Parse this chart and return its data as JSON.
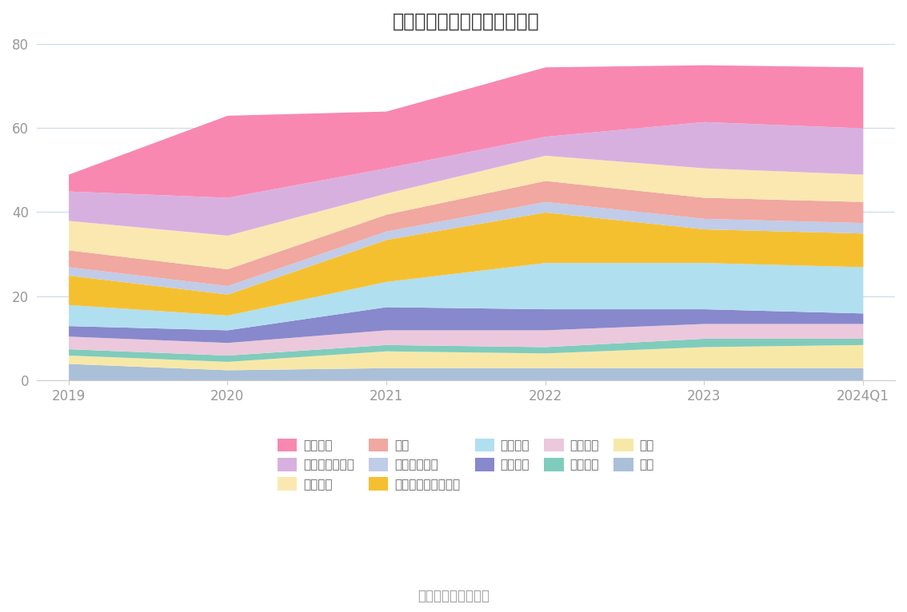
{
  "title": "历年主要资产堆积图（亿元）",
  "source": "数据来源：恒生聚源",
  "x_labels": [
    "2019",
    "2020",
    "2021",
    "2022",
    "2023",
    "2024Q1"
  ],
  "x_values": [
    0,
    1,
    2,
    3,
    4,
    5
  ],
  "ylim": [
    0,
    80
  ],
  "yticks": [
    0,
    20,
    40,
    60,
    80
  ],
  "series": [
    {
      "name": "其它",
      "color": "#aabfd8",
      "values": [
        4.0,
        2.5,
        3.0,
        3.0,
        3.0,
        3.0
      ]
    },
    {
      "name": "商誉",
      "color": "#f7e8a8",
      "values": [
        2.0,
        2.0,
        4.0,
        3.5,
        5.0,
        5.5
      ]
    },
    {
      "name": "开发支出",
      "color": "#80ccbc",
      "values": [
        1.5,
        1.5,
        1.5,
        1.5,
        2.0,
        1.5
      ]
    },
    {
      "name": "无形资产",
      "color": "#ecc8dc",
      "values": [
        3.0,
        3.0,
        3.5,
        4.0,
        3.5,
        3.5
      ]
    },
    {
      "name": "在建工程",
      "color": "#8888cc",
      "values": [
        2.5,
        3.0,
        5.5,
        5.0,
        3.5,
        2.5
      ]
    },
    {
      "name": "固定资产",
      "color": "#b0dff0",
      "values": [
        5.0,
        3.5,
        6.0,
        11.0,
        11.0,
        11.0
      ]
    },
    {
      "name": "其他非流动金融资产",
      "color": "#f5c030",
      "values": [
        7.0,
        5.0,
        10.0,
        12.0,
        8.0,
        8.0
      ]
    },
    {
      "name": "其他流动资产",
      "color": "#c0cce8",
      "values": [
        2.0,
        2.0,
        2.0,
        2.5,
        2.5,
        2.5
      ]
    },
    {
      "name": "存货",
      "color": "#f0a8a0",
      "values": [
        4.0,
        4.0,
        4.0,
        5.0,
        5.0,
        5.0
      ]
    },
    {
      "name": "应收账款",
      "color": "#fbe8b0",
      "values": [
        7.0,
        8.0,
        5.0,
        6.0,
        7.0,
        6.5
      ]
    },
    {
      "name": "交易性金融资产",
      "color": "#d8b0e0",
      "values": [
        7.0,
        9.0,
        6.0,
        4.5,
        11.0,
        11.0
      ]
    },
    {
      "name": "货币资金",
      "color": "#f888b0",
      "values": [
        4.0,
        19.5,
        13.5,
        16.5,
        13.5,
        14.5
      ]
    }
  ],
  "background_color": "#ffffff",
  "grid_color": "#ccd8e8",
  "title_fontsize": 17,
  "legend_fontsize": 11,
  "tick_fontsize": 12,
  "tick_color": "#999999"
}
